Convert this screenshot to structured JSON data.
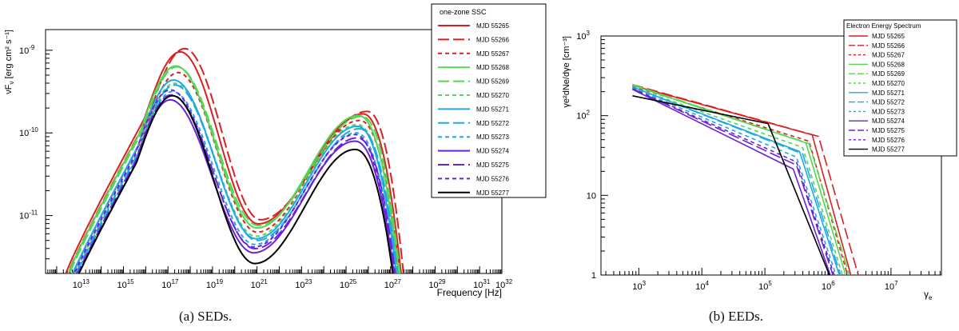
{
  "captions": {
    "a": "(a)  SEDs.",
    "b": "(b)  EEDs."
  },
  "colors": {
    "red": "#d92020",
    "green": "#55d455",
    "blue": "#1ea8e6",
    "purple": "#6a22d8",
    "black": "#000000"
  },
  "chart_data": [
    {
      "type": "line",
      "id": "sed",
      "title": "",
      "xlabel": "Frequency [Hz]",
      "ylabel": "νF",
      "ylabel_sub": "ν",
      "ylabel_units": " [erg cm² s⁻¹]",
      "xscale": "log",
      "yscale": "log",
      "xlim": [
        11.5,
        32
      ],
      "ylim": [
        -11.7,
        -8.75
      ],
      "x_ticks": [
        {
          "exp": 13,
          "label": "10"
        },
        {
          "exp": 15,
          "label": "10"
        },
        {
          "exp": 17,
          "label": "10"
        },
        {
          "exp": 19,
          "label": "10"
        },
        {
          "exp": 21,
          "label": "10"
        },
        {
          "exp": 23,
          "label": "10"
        },
        {
          "exp": 25,
          "label": "10"
        },
        {
          "exp": 27,
          "label": "10"
        },
        {
          "exp": 29,
          "label": "10"
        },
        {
          "exp": 31,
          "label": "10"
        },
        {
          "exp": 32,
          "label": "10"
        }
      ],
      "y_ticks": [
        {
          "exp": -9,
          "label": "10"
        },
        {
          "exp": -10,
          "label": "10"
        },
        {
          "exp": -11,
          "label": "10"
        }
      ],
      "legend": {
        "title": "one-zone SSC",
        "position": "top-right-outside",
        "entries": [
          "MJD 55265",
          "MJD 55266",
          "MJD 55267",
          "MJD 55268",
          "MJD 55269",
          "MJD 55270",
          "MJD 55271",
          "MJD 55272",
          "MJD 55273",
          "MJD 55274",
          "MJD 55275",
          "MJD 55276",
          "MJD 55277"
        ]
      },
      "series": [
        {
          "name": "MJD 55265",
          "color": "red",
          "dash": "solid",
          "peak1": [
            17.55,
            -9.02
          ],
          "dip": [
            21.05,
            -11.1
          ],
          "peak2": [
            25.75,
            -9.77
          ],
          "x_end": 27.55
        },
        {
          "name": "MJD 55266",
          "color": "red",
          "dash": "long",
          "peak1": [
            17.75,
            -8.98
          ],
          "dip": [
            21.15,
            -11.05
          ],
          "peak2": [
            25.95,
            -9.74
          ],
          "x_end": 27.65
        },
        {
          "name": "MJD 55267",
          "color": "red",
          "dash": "short",
          "peak1": [
            17.45,
            -9.27
          ],
          "dip": [
            21.0,
            -11.2
          ],
          "peak2": [
            25.6,
            -9.85
          ],
          "x_end": 27.5
        },
        {
          "name": "MJD 55268",
          "color": "green",
          "dash": "solid",
          "peak1": [
            17.35,
            -9.19
          ],
          "dip": [
            21.0,
            -11.15
          ],
          "peak2": [
            25.55,
            -9.79
          ],
          "x_end": 27.45
        },
        {
          "name": "MJD 55269",
          "color": "green",
          "dash": "long",
          "peak1": [
            17.4,
            -9.2
          ],
          "dip": [
            21.05,
            -11.12
          ],
          "peak2": [
            25.7,
            -9.8
          ],
          "x_end": 27.5
        },
        {
          "name": "MJD 55270",
          "color": "green",
          "dash": "short",
          "peak1": [
            17.3,
            -9.4
          ],
          "dip": [
            20.95,
            -11.25
          ],
          "peak2": [
            25.5,
            -9.9
          ],
          "x_end": 27.4
        },
        {
          "name": "MJD 55271",
          "color": "blue",
          "dash": "solid",
          "peak1": [
            17.25,
            -9.36
          ],
          "dip": [
            20.95,
            -11.28
          ],
          "peak2": [
            25.5,
            -9.92
          ],
          "x_end": 27.35
        },
        {
          "name": "MJD 55272",
          "color": "blue",
          "dash": "long",
          "peak1": [
            17.3,
            -9.42
          ],
          "dip": [
            21.0,
            -11.3
          ],
          "peak2": [
            25.6,
            -9.95
          ],
          "x_end": 27.4
        },
        {
          "name": "MJD 55273",
          "color": "blue",
          "dash": "short",
          "peak1": [
            17.2,
            -9.5
          ],
          "dip": [
            20.9,
            -11.35
          ],
          "peak2": [
            25.45,
            -10.0
          ],
          "x_end": 27.3
        },
        {
          "name": "MJD 55274",
          "color": "purple",
          "dash": "solid",
          "peak1": [
            17.1,
            -9.6
          ],
          "dip": [
            20.85,
            -11.45
          ],
          "peak2": [
            25.4,
            -10.1
          ],
          "x_end": 27.25
        },
        {
          "name": "MJD 55275",
          "color": "purple",
          "dash": "long",
          "peak1": [
            17.15,
            -9.54
          ],
          "dip": [
            20.9,
            -11.4
          ],
          "peak2": [
            25.5,
            -10.06
          ],
          "x_end": 27.3
        },
        {
          "name": "MJD 55276",
          "color": "purple",
          "dash": "short",
          "peak1": [
            17.1,
            -9.48
          ],
          "dip": [
            20.85,
            -11.38
          ],
          "peak2": [
            25.4,
            -10.02
          ],
          "x_end": 27.25
        },
        {
          "name": "MJD 55277",
          "color": "black",
          "dash": "solid",
          "peak1": [
            17.2,
            -9.55
          ],
          "dip": [
            20.9,
            -11.58
          ],
          "peak2": [
            25.4,
            -10.2
          ],
          "x_end": 27.2
        }
      ]
    },
    {
      "type": "line",
      "id": "eed",
      "title": "",
      "xlabel": "γ",
      "xlabel_sub": "e",
      "ylabel": "γ",
      "ylabel_full": "γe²dNe/dγe [cm⁻³]",
      "xscale": "log",
      "yscale": "log",
      "xlim": [
        2.4,
        7.8
      ],
      "ylim": [
        0,
        3
      ],
      "x_ticks": [
        {
          "exp": 3,
          "label": "10"
        },
        {
          "exp": 4,
          "label": "10"
        },
        {
          "exp": 5,
          "label": "10"
        },
        {
          "exp": 6,
          "label": "10"
        },
        {
          "exp": 7,
          "label": "10"
        }
      ],
      "y_ticks": [
        {
          "value": 3,
          "label": "10",
          "sup": "3"
        },
        {
          "value": 2,
          "label": "10",
          "sup": "2"
        },
        {
          "value": 1,
          "label": "10",
          "sup": ""
        },
        {
          "value": 0,
          "label": "1",
          "sup": ""
        }
      ],
      "legend": {
        "title": "Electron Energy Spectrum",
        "position": "top-right-inside",
        "entries": [
          "MJD 55265",
          "MJD 55266",
          "MJD 55267",
          "MJD 55268",
          "MJD 55269",
          "MJD 55270",
          "MJD 55271",
          "MJD 55272",
          "MJD 55273",
          "MJD 55274",
          "MJD 55275",
          "MJD 55276",
          "MJD 55277"
        ]
      },
      "series": [
        {
          "name": "MJD 55265",
          "color": "red",
          "dash": "solid",
          "start": [
            2.9,
            2.38
          ],
          "break": [
            5.75,
            1.76
          ],
          "end": [
            6.38,
            0
          ]
        },
        {
          "name": "MJD 55266",
          "color": "red",
          "dash": "long",
          "start": [
            2.9,
            2.39
          ],
          "break": [
            5.85,
            1.74
          ],
          "end": [
            6.5,
            0
          ]
        },
        {
          "name": "MJD 55267",
          "color": "red",
          "dash": "short",
          "start": [
            2.9,
            2.37
          ],
          "break": [
            5.7,
            1.68
          ],
          "end": [
            6.33,
            0
          ]
        },
        {
          "name": "MJD 55268",
          "color": "green",
          "dash": "solid",
          "start": [
            2.9,
            2.38
          ],
          "break": [
            5.65,
            1.66
          ],
          "end": [
            6.3,
            0
          ]
        },
        {
          "name": "MJD 55269",
          "color": "green",
          "dash": "long",
          "start": [
            2.9,
            2.39
          ],
          "break": [
            5.7,
            1.65
          ],
          "end": [
            6.36,
            0
          ]
        },
        {
          "name": "MJD 55270",
          "color": "green",
          "dash": "short",
          "start": [
            2.9,
            2.36
          ],
          "break": [
            5.6,
            1.6
          ],
          "end": [
            6.25,
            0
          ]
        },
        {
          "name": "MJD 55271",
          "color": "blue",
          "dash": "solid",
          "start": [
            2.9,
            2.36
          ],
          "break": [
            5.55,
            1.55
          ],
          "end": [
            6.2,
            0
          ]
        },
        {
          "name": "MJD 55272",
          "color": "blue",
          "dash": "long",
          "start": [
            2.9,
            2.36
          ],
          "break": [
            5.6,
            1.52
          ],
          "end": [
            6.22,
            0
          ]
        },
        {
          "name": "MJD 55273",
          "color": "blue",
          "dash": "short",
          "start": [
            2.9,
            2.35
          ],
          "break": [
            5.5,
            1.48
          ],
          "end": [
            6.15,
            0
          ]
        },
        {
          "name": "MJD 55274",
          "color": "purple",
          "dash": "solid",
          "start": [
            2.9,
            2.33
          ],
          "break": [
            5.45,
            1.33
          ],
          "end": [
            6.06,
            0
          ]
        },
        {
          "name": "MJD 55275",
          "color": "purple",
          "dash": "long",
          "start": [
            2.9,
            2.34
          ],
          "break": [
            5.5,
            1.38
          ],
          "end": [
            6.1,
            0
          ]
        },
        {
          "name": "MJD 55276",
          "color": "purple",
          "dash": "short",
          "start": [
            2.9,
            2.34
          ],
          "break": [
            5.5,
            1.42
          ],
          "end": [
            6.12,
            0
          ]
        },
        {
          "name": "MJD 55277",
          "color": "black",
          "dash": "solid",
          "start": [
            2.9,
            2.25
          ],
          "break": [
            5.05,
            1.9
          ],
          "end": [
            6.05,
            0
          ]
        }
      ]
    }
  ]
}
